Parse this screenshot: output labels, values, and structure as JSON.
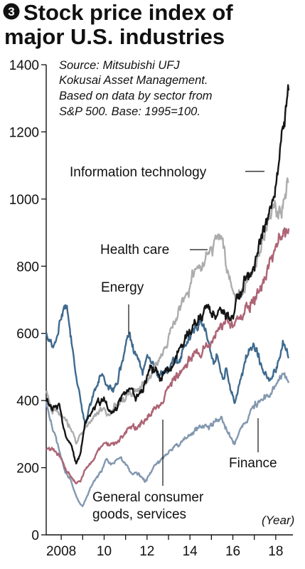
{
  "header": {
    "badge_number": "3",
    "title_line1": "Stock price index of",
    "title_line2": "major U.S. industries"
  },
  "source_note": [
    "Source: Mitsubishi UFJ",
    "Kokusai Asset Management.",
    "Based on data by sector from",
    "S&P 500. Base: 1995=100."
  ],
  "chart_data": {
    "type": "line",
    "title": "Stock price index of major U.S. industries",
    "source": "Source: Mitsubishi UFJ Kokusai Asset Management. Based on data by sector from S&P 500. Base: 1995=100.",
    "x_unit_label": "(Year)",
    "xlim": [
      2007.3,
      2018.8
    ],
    "ylim": [
      0,
      1400
    ],
    "y_ticks": [
      0,
      200,
      400,
      600,
      800,
      1000,
      1200,
      1400
    ],
    "y_tick_labels": [
      "0",
      "200",
      "400",
      "600",
      "800",
      "1000",
      "1200",
      "1400"
    ],
    "x_ticks": [
      2008,
      2009,
      2010,
      2011,
      2012,
      2013,
      2014,
      2015,
      2016,
      2017,
      2018
    ],
    "x_tick_labels": [
      "2008",
      "",
      "10",
      "",
      "12",
      "",
      "14",
      "",
      "16",
      "",
      "18"
    ],
    "grid": false,
    "legend": "direct labels",
    "series": [
      {
        "name": "Energy",
        "color": "#3f6a8e",
        "x": [
          2007.3,
          2007.6,
          2007.9,
          2008.1,
          2008.3,
          2008.5,
          2008.7,
          2008.9,
          2009.1,
          2009.3,
          2009.6,
          2009.9,
          2010.2,
          2010.5,
          2010.8,
          2011.0,
          2011.2,
          2011.5,
          2011.8,
          2012.0,
          2012.3,
          2012.6,
          2012.9,
          2013.2,
          2013.5,
          2013.8,
          2014.0,
          2014.3,
          2014.5,
          2014.7,
          2014.9,
          2015.1,
          2015.3,
          2015.5,
          2015.7,
          2015.9,
          2016.1,
          2016.3,
          2016.6,
          2016.9,
          2017.2,
          2017.5,
          2017.8,
          2018.0,
          2018.2,
          2018.4,
          2018.6
        ],
        "values": [
          600,
          540,
          620,
          665,
          645,
          560,
          470,
          400,
          320,
          380,
          440,
          470,
          440,
          430,
          500,
          560,
          590,
          520,
          470,
          560,
          510,
          480,
          490,
          510,
          520,
          560,
          590,
          620,
          640,
          620,
          560,
          510,
          540,
          470,
          500,
          440,
          390,
          450,
          520,
          560,
          530,
          480,
          470,
          490,
          540,
          580,
          535
        ]
      },
      {
        "name": "Information technology",
        "color": "#151515",
        "x": [
          2007.3,
          2007.6,
          2007.9,
          2008.2,
          2008.5,
          2008.7,
          2008.9,
          2009.1,
          2009.4,
          2009.7,
          2010.0,
          2010.3,
          2010.6,
          2010.9,
          2011.2,
          2011.5,
          2011.8,
          2012.0,
          2012.3,
          2012.6,
          2012.9,
          2013.2,
          2013.5,
          2013.8,
          2014.1,
          2014.4,
          2014.7,
          2015.0,
          2015.3,
          2015.6,
          2015.9,
          2016.2,
          2016.5,
          2016.8,
          2017.1,
          2017.4,
          2017.7,
          2018.0,
          2018.2,
          2018.4,
          2018.6
        ],
        "values": [
          395,
          380,
          390,
          300,
          270,
          215,
          240,
          320,
          360,
          390,
          395,
          360,
          380,
          420,
          440,
          410,
          430,
          470,
          500,
          470,
          490,
          510,
          540,
          580,
          620,
          640,
          660,
          670,
          650,
          660,
          640,
          700,
          760,
          800,
          850,
          900,
          950,
          1050,
          1150,
          1250,
          1310
        ]
      },
      {
        "name": "Health care",
        "color": "#adadad",
        "x": [
          2007.3,
          2007.6,
          2007.9,
          2008.2,
          2008.5,
          2008.7,
          2009.0,
          2009.3,
          2009.6,
          2009.9,
          2010.2,
          2010.5,
          2010.8,
          2011.1,
          2011.4,
          2011.7,
          2012.0,
          2012.3,
          2012.6,
          2012.9,
          2013.2,
          2013.5,
          2013.8,
          2014.1,
          2014.4,
          2014.7,
          2015.0,
          2015.3,
          2015.5,
          2015.8,
          2016.1,
          2016.4,
          2016.7,
          2017.0,
          2017.3,
          2017.6,
          2017.9,
          2018.1,
          2018.3,
          2018.5,
          2018.6
        ],
        "values": [
          420,
          380,
          360,
          340,
          310,
          270,
          300,
          330,
          360,
          380,
          360,
          380,
          400,
          420,
          440,
          430,
          450,
          490,
          530,
          560,
          620,
          680,
          720,
          760,
          800,
          820,
          860,
          880,
          850,
          770,
          700,
          720,
          760,
          800,
          860,
          930,
          980,
          960,
          990,
          1030,
          1060
        ]
      },
      {
        "name": "General consumer goods, services",
        "color": "#ad6475",
        "x": [
          2007.3,
          2007.6,
          2007.9,
          2008.2,
          2008.5,
          2008.7,
          2008.9,
          2009.1,
          2009.4,
          2009.7,
          2010.0,
          2010.3,
          2010.6,
          2010.9,
          2011.2,
          2011.5,
          2011.8,
          2012.1,
          2012.4,
          2012.7,
          2013.0,
          2013.3,
          2013.6,
          2013.9,
          2014.2,
          2014.5,
          2014.8,
          2015.1,
          2015.4,
          2015.7,
          2016.0,
          2016.3,
          2016.6,
          2016.9,
          2017.2,
          2017.5,
          2017.8,
          2018.1,
          2018.4,
          2018.6
        ],
        "values": [
          255,
          250,
          240,
          200,
          170,
          150,
          160,
          190,
          220,
          250,
          265,
          265,
          280,
          300,
          330,
          320,
          335,
          365,
          380,
          400,
          440,
          470,
          490,
          520,
          545,
          550,
          560,
          590,
          620,
          640,
          610,
          640,
          670,
          700,
          730,
          770,
          820,
          860,
          900,
          925
        ]
      },
      {
        "name": "Finance",
        "color": "#8398b0",
        "x": [
          2007.3,
          2007.6,
          2007.9,
          2008.2,
          2008.4,
          2008.6,
          2008.8,
          2009.0,
          2009.2,
          2009.5,
          2009.8,
          2010.1,
          2010.4,
          2010.7,
          2011.0,
          2011.3,
          2011.6,
          2011.9,
          2012.2,
          2012.5,
          2012.8,
          2013.1,
          2013.4,
          2013.7,
          2014.0,
          2014.3,
          2014.6,
          2014.9,
          2015.2,
          2015.5,
          2015.7,
          2015.9,
          2016.1,
          2016.4,
          2016.7,
          2017.0,
          2017.3,
          2017.6,
          2017.9,
          2018.2,
          2018.4,
          2018.6
        ],
        "values": [
          395,
          320,
          250,
          190,
          170,
          130,
          100,
          85,
          115,
          160,
          185,
          220,
          215,
          230,
          210,
          185,
          180,
          160,
          190,
          215,
          225,
          250,
          270,
          280,
          300,
          310,
          325,
          320,
          335,
          345,
          320,
          290,
          275,
          320,
          345,
          390,
          400,
          420,
          440,
          465,
          475,
          470
        ]
      }
    ]
  },
  "labels": {
    "energy": "Energy",
    "it": "Information technology",
    "health": "Health care",
    "consumer_line1": "General consumer",
    "consumer_line2": "goods, services",
    "finance": "Finance"
  }
}
